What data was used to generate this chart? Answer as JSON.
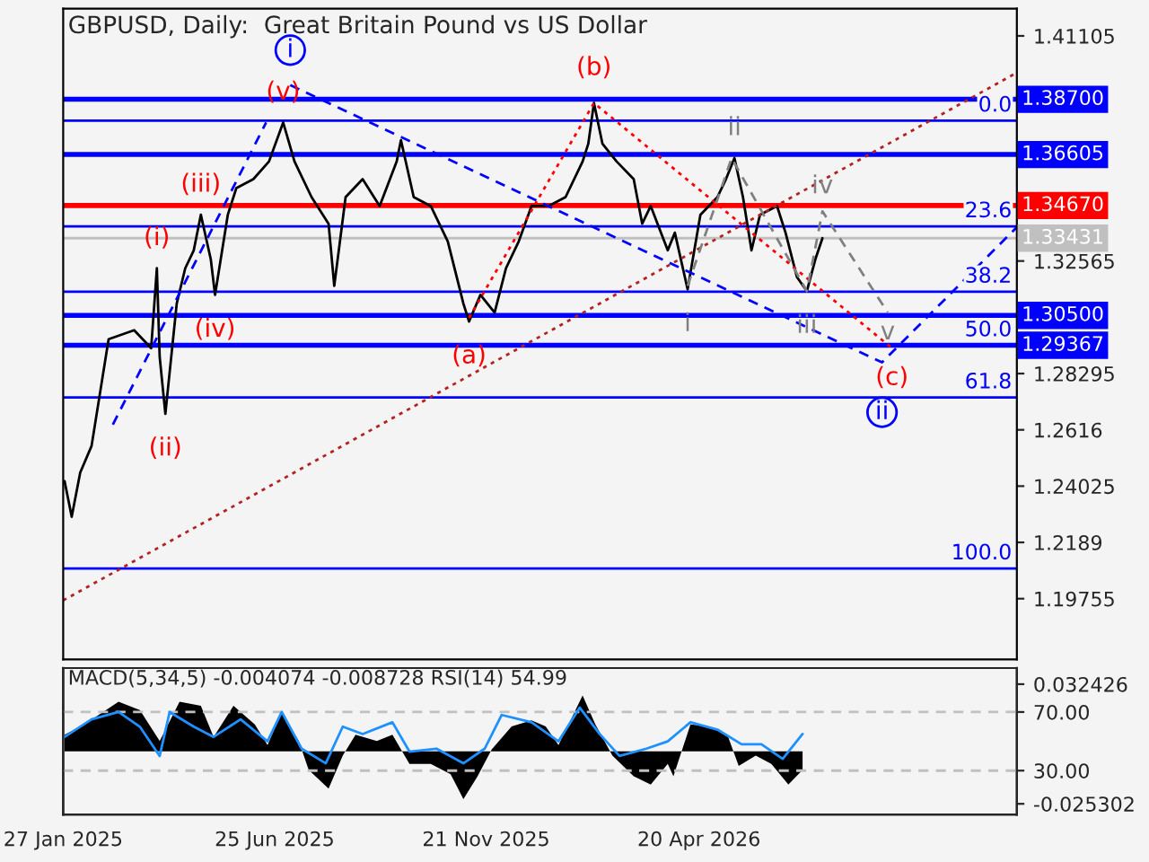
{
  "chart_data": [
    {
      "type": "line",
      "title": "GBPUSD, Daily:  Great Britain Pound vs US Dollar",
      "xlim": [
        "2025-01-27",
        "2026-11-30"
      ],
      "ylim": [
        1.1745,
        1.4214
      ],
      "yticks": [
        1.41105,
        1.32565,
        1.28295,
        1.2616,
        1.24025,
        1.2189,
        1.19755
      ],
      "tick_labels": "y",
      "grid": false,
      "series": [
        {
          "color": "#000000",
          "x": [
            "2025-01-28",
            "2025-02-02",
            "2025-02-08",
            "2025-02-16",
            "2025-02-28",
            "2025-03-18",
            "2025-03-30",
            "2025-04-03",
            "2025-04-05",
            "2025-04-09",
            "2025-04-17",
            "2025-04-23",
            "2025-04-29",
            "2025-05-04",
            "2025-05-11",
            "2025-05-14",
            "2025-05-23",
            "2025-05-29",
            "2025-06-10",
            "2025-06-21",
            "2025-07-01",
            "2025-07-09",
            "2025-07-21",
            "2025-08-02",
            "2025-08-06",
            "2025-08-14",
            "2025-08-26",
            "2025-09-07",
            "2025-09-19",
            "2025-09-22",
            "2025-10-01",
            "2025-10-13",
            "2025-10-25",
            "2025-11-05",
            "2025-11-09",
            "2025-11-17",
            "2025-11-27",
            "2025-12-05",
            "2025-12-14",
            "2025-12-23",
            "2026-01-04",
            "2026-01-16",
            "2026-01-28",
            "2026-02-01",
            "2026-02-05",
            "2026-02-11",
            "2026-02-21",
            "2026-03-05",
            "2026-03-11",
            "2026-03-17",
            "2026-03-29",
            "2026-04-03",
            "2026-04-12",
            "2026-04-21",
            "2026-05-03",
            "2026-05-09",
            "2026-05-15",
            "2026-05-21",
            "2026-05-27",
            "2026-06-02",
            "2026-06-14",
            "2026-06-20",
            "2026-06-28",
            "2026-07-05",
            "2026-07-11",
            "2026-07-16"
          ],
          "values": [
            1.2421,
            1.2286,
            1.2454,
            1.2555,
            1.296,
            1.2994,
            1.2926,
            1.3229,
            1.2892,
            1.2677,
            1.3095,
            1.3229,
            1.3297,
            1.3432,
            1.3263,
            1.3128,
            1.3432,
            1.3533,
            1.3567,
            1.3634,
            1.3782,
            1.3634,
            1.3499,
            1.3398,
            1.3162,
            1.3499,
            1.3567,
            1.3465,
            1.3634,
            1.3715,
            1.3499,
            1.3465,
            1.3331,
            1.3095,
            1.3027,
            1.3128,
            1.3061,
            1.3229,
            1.3331,
            1.3465,
            1.3465,
            1.3499,
            1.3634,
            1.3701,
            1.3856,
            1.3701,
            1.3634,
            1.3567,
            1.3398,
            1.3465,
            1.3297,
            1.3364,
            1.3149,
            1.3432,
            1.3499,
            1.3567,
            1.3647,
            1.3499,
            1.3297,
            1.3432,
            1.3465,
            1.3364,
            1.3196,
            1.3142,
            1.3263,
            1.3343
          ]
        },
        {
          "color": "#b22222",
          "line_style": "dotted",
          "x": [
            "2025-01-27",
            "2026-11-30"
          ],
          "values": [
            1.1969,
            1.3971
          ]
        },
        {
          "color": "#0000ff",
          "line_style": "dashed",
          "x": [
            "2025-07-06",
            "2026-08-27",
            "2026-11-30"
          ],
          "values": [
            1.3924,
            1.2872,
            1.3385
          ]
        },
        {
          "color": "#0000ff",
          "line_style": "dashed",
          "x": [
            "2025-03-03",
            "2025-06-19"
          ],
          "values": [
            1.2636,
            1.3782
          ]
        },
        {
          "color": "#ff0000",
          "line_style": "dotted",
          "x": [
            "2025-11-09",
            "2026-02-05",
            "2026-09-03"
          ],
          "values": [
            1.3041,
            1.3856,
            1.2926
          ]
        },
        {
          "color": "#808080",
          "line_style": "dashed",
          "x": [
            "2026-04-12",
            "2026-05-13",
            "2026-07-05",
            "2026-07-16",
            "2026-08-31"
          ],
          "values": [
            1.3162,
            1.3647,
            1.3142,
            1.3445,
            1.3061
          ]
        }
      ],
      "ref_lines": [
        {
          "axis": "y",
          "value": 1.387,
          "label": "1.38700",
          "color": "#0000ff"
        },
        {
          "axis": "y",
          "value": 1.36605,
          "label": "1.36605",
          "color": "#0000ff"
        },
        {
          "axis": "y",
          "value": 1.3467,
          "label": "1.34670",
          "color": "#ff0000"
        },
        {
          "axis": "y",
          "value": 1.33431,
          "label": "1.33431",
          "color": "#c0c0c0"
        },
        {
          "axis": "y",
          "value": 1.305,
          "label": "1.30500",
          "color": "#0000ff"
        },
        {
          "axis": "y",
          "value": 1.29367,
          "label": "1.29367",
          "color": "#0000ff"
        },
        {
          "axis": "y",
          "value": 1.3789,
          "color": "#0000ff"
        },
        {
          "axis": "y",
          "value": 1.3388,
          "color": "#0000ff"
        },
        {
          "axis": "y",
          "value": 1.314,
          "color": "#0000ff"
        },
        {
          "axis": "y",
          "value": 1.2739,
          "color": "#0000ff"
        },
        {
          "axis": "y",
          "value": 1.209,
          "color": "#0000ff"
        }
      ],
      "annotations": [
        {
          "text": "i",
          "x": "2025-07-06",
          "y": 1.3924
        },
        {
          "text": "(v)",
          "x": "2025-07-01",
          "y": 1.3782
        },
        {
          "text": "(iii)",
          "x": "2025-05-04",
          "y": 1.3432
        },
        {
          "text": "(i)",
          "x": "2025-04-03",
          "y": 1.3229
        },
        {
          "text": "(iv)",
          "x": "2025-05-14",
          "y": 1.3128
        },
        {
          "text": "(ii)",
          "x": "2025-04-09",
          "y": 1.2677
        },
        {
          "text": "(a)",
          "x": "2025-11-09",
          "y": 1.3027
        },
        {
          "text": "(b)",
          "x": "2026-02-05",
          "y": 1.3856
        },
        {
          "text": "(c)",
          "x": "2026-09-03",
          "y": 1.2926
        },
        {
          "text": "ii",
          "x": "2026-08-27",
          "y": 1.2872
        },
        {
          "text": "ii",
          "x": "2026-05-15",
          "y": 1.3647
        },
        {
          "text": "iv",
          "x": "2026-07-16",
          "y": 1.3445
        },
        {
          "text": "i",
          "x": "2026-04-12",
          "y": 1.3149
        },
        {
          "text": "iii",
          "x": "2026-07-05",
          "y": 1.3142
        },
        {
          "text": "v",
          "x": "2026-08-31",
          "y": 1.3061
        },
        {
          "text": "0.0",
          "x": "2026-11-30",
          "y": 1.3789
        },
        {
          "text": "23.6",
          "x": "2026-11-30",
          "y": 1.3388
        },
        {
          "text": "38.2",
          "x": "2026-11-30",
          "y": 1.314
        },
        {
          "text": "50.0",
          "x": "2026-11-30",
          "y": 1.29367
        },
        {
          "text": "61.8",
          "x": "2026-11-30",
          "y": 1.2739
        },
        {
          "text": "100.0",
          "x": "2026-11-30",
          "y": 1.209
        }
      ]
    },
    {
      "type": "area",
      "title": "MACD(5,34,5) -0.004074 -0.008728 RSI(14) 54.99",
      "xlim": [
        "2025-01-27",
        "2026-11-30"
      ],
      "ylim": [
        -0.0305,
        0.0402
      ],
      "xticks": [
        {
          "value": "2025-01-27",
          "label": "27 Jan 2025"
        },
        {
          "value": "2025-06-25",
          "label": "25 Jun 2025"
        },
        {
          "value": "2025-11-21",
          "label": "21 Nov 2025"
        },
        {
          "value": "2026-04-20",
          "label": "20 Apr 2026"
        }
      ],
      "yticks": [
        0.032426,
        -0.025302
      ],
      "y2lim": [
        0,
        100
      ],
      "y2ticks": [
        {
          "value": 70,
          "label": "70.00"
        },
        {
          "value": 30,
          "label": "30.00"
        }
      ],
      "grid": false,
      "ref_lines": [
        {
          "axis": "y2",
          "value": 70,
          "color": "#c0c0c0",
          "line_style": "dashed"
        },
        {
          "axis": "y2",
          "value": 30,
          "color": "#c0c0c0",
          "line_style": "dashed"
        }
      ],
      "series": [
        {
          "color": "#000000",
          "x": [
            "2025-01-28",
            "2025-02-11",
            "2025-03-07",
            "2025-03-22",
            "2025-04-05",
            "2025-04-19",
            "2025-05-04",
            "2025-05-13",
            "2025-05-27",
            "2025-06-11",
            "2025-06-20",
            "2025-06-30",
            "2025-07-12",
            "2025-07-19",
            "2025-08-02",
            "2025-08-12",
            "2025-08-21",
            "2025-09-05",
            "2025-09-16",
            "2025-09-28",
            "2025-10-13",
            "2025-10-27",
            "2025-11-05",
            "2025-11-15",
            "2025-11-25",
            "2025-12-09",
            "2025-12-23",
            "2026-01-02",
            "2026-01-11",
            "2026-01-28",
            "2026-02-06",
            "2026-02-18",
            "2026-03-05",
            "2026-03-17",
            "2026-03-29",
            "2026-04-02",
            "2026-04-14",
            "2026-04-26",
            "2026-05-10",
            "2026-05-18",
            "2026-05-30",
            "2026-06-10",
            "2026-06-22",
            "2026-07-02"
          ],
          "values": [
            0.008,
            0.013,
            0.024,
            0.02,
            0.005,
            0.024,
            0.022,
            0.007,
            0.022,
            0.013,
            0.003,
            0.019,
            0.005,
            -0.009,
            -0.018,
            -0.002,
            0.008,
            0.005,
            0.008,
            -0.006,
            -0.006,
            -0.011,
            -0.023,
            -0.012,
            0.001,
            0.012,
            0.015,
            0.012,
            0.003,
            0.027,
            0.013,
            -0.002,
            -0.012,
            -0.016,
            -0.006,
            -0.012,
            0.013,
            0.012,
            0.008,
            -0.007,
            -0.002,
            -0.006,
            -0.016,
            -0.009
          ]
        },
        {
          "type": "line",
          "axis": "y2",
          "color": "#1e90ff",
          "x": [
            "2025-01-28",
            "2025-02-16",
            "2025-03-07",
            "2025-03-22",
            "2025-04-05",
            "2025-04-12",
            "2025-04-29",
            "2025-05-13",
            "2025-06-01",
            "2025-06-20",
            "2025-06-30",
            "2025-07-14",
            "2025-07-31",
            "2025-08-12",
            "2025-08-26",
            "2025-09-16",
            "2025-09-28",
            "2025-10-17",
            "2025-11-05",
            "2025-11-20",
            "2025-12-02",
            "2025-12-23",
            "2026-01-11",
            "2026-01-26",
            "2026-02-09",
            "2026-02-23",
            "2026-03-14",
            "2026-03-29",
            "2026-04-14",
            "2026-05-03",
            "2026-05-20",
            "2026-06-03",
            "2026-06-18",
            "2026-07-02"
          ],
          "values": [
            53,
            65,
            70,
            60,
            40,
            70,
            60,
            53,
            65,
            50,
            70,
            45,
            35,
            60,
            55,
            63,
            43,
            45,
            35,
            45,
            68,
            63,
            50,
            73,
            55,
            40,
            45,
            50,
            63,
            58,
            48,
            48,
            38,
            55
          ]
        }
      ]
    }
  ]
}
